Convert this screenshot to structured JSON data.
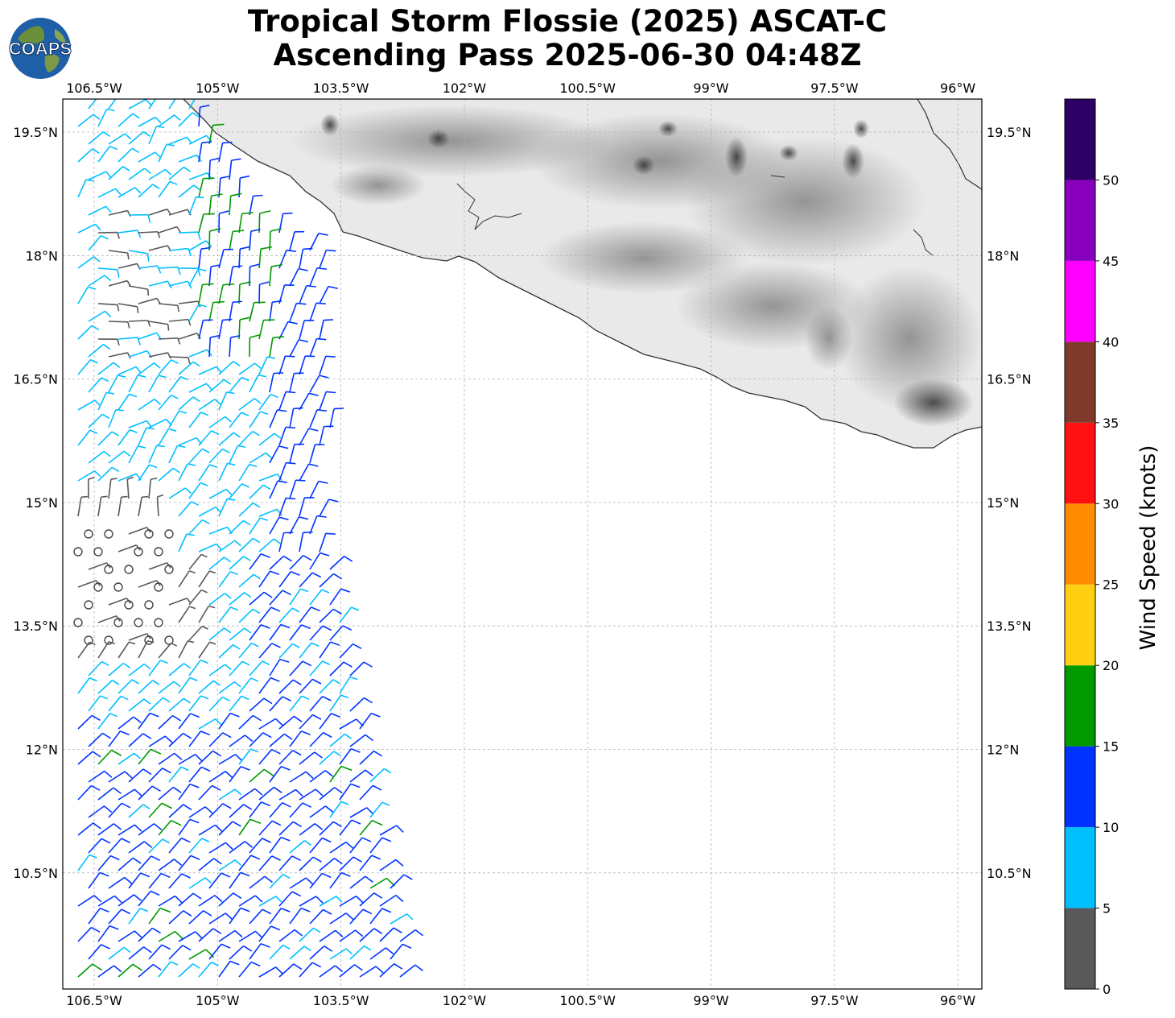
{
  "title": {
    "line1": "Tropical Storm Flossie (2025) ASCAT-C",
    "line2": "Ascending Pass 2025-06-30 04:48Z"
  },
  "logo": {
    "text": "COAPS",
    "icon": "globe-icon"
  },
  "map": {
    "lon_labels": [
      "106.5°W",
      "105°W",
      "103.5°W",
      "102°W",
      "100.5°W",
      "99°W",
      "97.5°W",
      "96°W"
    ],
    "lat_labels": [
      "19.5°N",
      "18°N",
      "16.5°N",
      "15°N",
      "13.5°N",
      "12°N",
      "10.5°N"
    ],
    "coastline_color": "#333333",
    "grid": "on"
  },
  "colorbar": {
    "label": "Wind Speed (knots)",
    "tick_labels": [
      "0",
      "5",
      "10",
      "15",
      "20",
      "25",
      "30",
      "35",
      "40",
      "45",
      "50"
    ],
    "bins": [
      {
        "from": 0,
        "to": 5,
        "color": "#595959"
      },
      {
        "from": 5,
        "to": 10,
        "color": "#00bfff"
      },
      {
        "from": 10,
        "to": 15,
        "color": "#0033ff"
      },
      {
        "from": 15,
        "to": 20,
        "color": "#009900"
      },
      {
        "from": 20,
        "to": 25,
        "color": "#ffd011"
      },
      {
        "from": 25,
        "to": 30,
        "color": "#ff8c00"
      },
      {
        "from": 30,
        "to": 35,
        "color": "#ff1111"
      },
      {
        "from": 35,
        "to": 40,
        "color": "#7f3a2a"
      },
      {
        "from": 40,
        "to": 45,
        "color": "#ff00ff"
      },
      {
        "from": 45,
        "to": 50,
        "color": "#8800bb"
      },
      {
        "from": 50,
        "to": 55,
        "color": "#2d0066"
      }
    ]
  }
}
